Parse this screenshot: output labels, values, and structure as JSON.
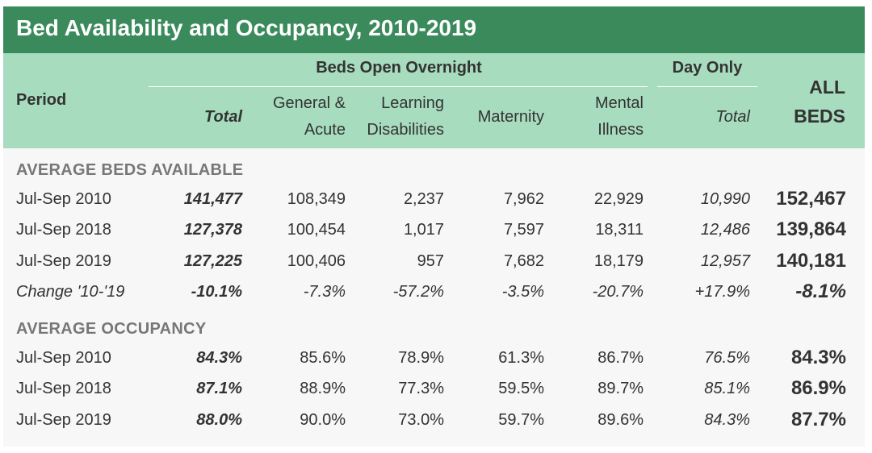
{
  "title": "Bed Availability and Occupancy, 2010-2019",
  "chart_data": {
    "type": "table",
    "title": "Bed Availability and Occupancy, 2010-2019",
    "header": {
      "period": "Period",
      "group_overnight": "Beds Open Overnight",
      "group_day": "Day Only",
      "all_beds": [
        "ALL",
        "BEDS"
      ],
      "columns": [
        {
          "lines": [
            "Total"
          ]
        },
        {
          "lines": [
            "General &",
            "Acute"
          ]
        },
        {
          "lines": [
            "Learning",
            "Disabilities"
          ]
        },
        {
          "lines": [
            "Maternity"
          ]
        },
        {
          "lines": [
            "Mental",
            "Illness"
          ]
        },
        {
          "lines": [
            "Total"
          ]
        }
      ]
    },
    "sections": [
      {
        "title": "AVERAGE BEDS AVAILABLE",
        "rows": [
          {
            "period": "Jul-Sep 2010",
            "values": [
              "141,477",
              "108,349",
              "2,237",
              "7,962",
              "22,929",
              "10,990",
              "152,467"
            ]
          },
          {
            "period": "Jul-Sep 2018",
            "values": [
              "127,378",
              "100,454",
              "1,017",
              "7,597",
              "18,311",
              "12,486",
              "139,864"
            ]
          },
          {
            "period": "Jul-Sep 2019",
            "values": [
              "127,225",
              "100,406",
              "957",
              "7,682",
              "18,179",
              "12,957",
              "140,181"
            ]
          },
          {
            "period": "Change '10-'19",
            "change": true,
            "values": [
              "-10.1%",
              "-7.3%",
              "-57.2%",
              "-3.5%",
              "-20.7%",
              "+17.9%",
              "-8.1%"
            ]
          }
        ]
      },
      {
        "title": "AVERAGE OCCUPANCY",
        "rows": [
          {
            "period": "Jul-Sep 2010",
            "values": [
              "84.3%",
              "85.6%",
              "78.9%",
              "61.3%",
              "86.7%",
              "76.5%",
              "84.3%"
            ]
          },
          {
            "period": "Jul-Sep 2018",
            "values": [
              "87.1%",
              "88.9%",
              "77.3%",
              "59.5%",
              "89.7%",
              "85.1%",
              "86.9%"
            ]
          },
          {
            "period": "Jul-Sep 2019",
            "values": [
              "88.0%",
              "90.0%",
              "73.0%",
              "59.7%",
              "89.6%",
              "84.3%",
              "87.7%"
            ]
          }
        ]
      }
    ]
  },
  "colors": {
    "title_bg": "#3a8a5c",
    "header_bg": "#a7dcbe",
    "panel_bg": "#f7f7f7",
    "section_text": "#777777"
  }
}
